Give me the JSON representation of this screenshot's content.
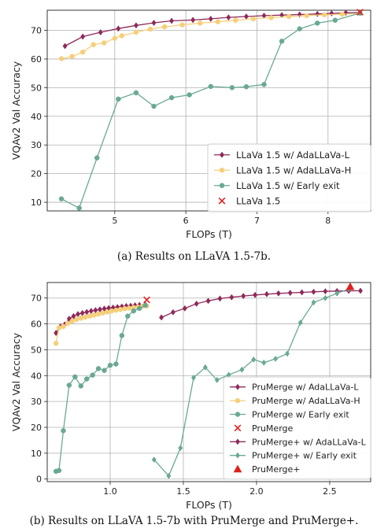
{
  "captions": {
    "a": "(a) Results on LLaVA 1.5-7b.",
    "b": "(b) Results on LLaVA 1.5-7b with PruMerge and PruMerge+."
  },
  "colors": {
    "adallava_l": "#8e2a5a",
    "adallava_h": "#f5cf7a",
    "early_exit": "#6aa994",
    "baseline": "#e0201c",
    "grid": "#b0b0b0"
  },
  "chart_data": [
    {
      "type": "line",
      "xlabel": "FLOPs (T)",
      "ylabel": "VQAv2 Val Accuracy",
      "xlim": [
        4.05,
        8.6
      ],
      "ylim": [
        7,
        77
      ],
      "xticks": [
        5,
        6,
        7,
        8
      ],
      "yticks": [
        10,
        20,
        30,
        40,
        50,
        60,
        70
      ],
      "grid": true,
      "legend_position": "lower-right",
      "series": [
        {
          "name": "LLaVa 1.5 w/ AdaLLaVa-L",
          "marker": "diamond",
          "color": "#8e2a5a",
          "points": [
            [
              4.3,
              64.5
            ],
            [
              4.55,
              67.8
            ],
            [
              4.8,
              69.3
            ],
            [
              5.05,
              70.6
            ],
            [
              5.3,
              71.7
            ],
            [
              5.55,
              72.6
            ],
            [
              5.8,
              73.3
            ],
            [
              6.1,
              73.6
            ],
            [
              6.35,
              74.0
            ],
            [
              6.6,
              74.5
            ],
            [
              6.85,
              74.8
            ],
            [
              7.1,
              75.1
            ],
            [
              7.35,
              75.3
            ],
            [
              7.6,
              75.5
            ],
            [
              7.85,
              75.7
            ],
            [
              8.05,
              75.9
            ],
            [
              8.25,
              76.1
            ],
            [
              8.45,
              76.2
            ]
          ]
        },
        {
          "name": "LLaVa 1.5 w/ AdaLLaVa-H",
          "marker": "circle",
          "color": "#f5cf7a",
          "points": [
            [
              4.25,
              60.1
            ],
            [
              4.4,
              60.9
            ],
            [
              4.55,
              62.4
            ],
            [
              4.7,
              65.0
            ],
            [
              4.85,
              65.6
            ],
            [
              5.0,
              67.2
            ],
            [
              5.1,
              68.1
            ],
            [
              5.3,
              69.3
            ],
            [
              5.5,
              70.4
            ],
            [
              5.7,
              71.2
            ],
            [
              5.95,
              71.9
            ],
            [
              6.2,
              72.5
            ],
            [
              6.45,
              73.0
            ],
            [
              6.7,
              73.5
            ],
            [
              6.95,
              74.0
            ],
            [
              7.2,
              74.4
            ],
            [
              7.45,
              74.8
            ],
            [
              7.7,
              75.1
            ],
            [
              7.95,
              75.4
            ],
            [
              8.2,
              75.6
            ],
            [
              8.45,
              75.9
            ]
          ]
        },
        {
          "name": "LLaVa 1.5 w/ Early exit",
          "marker": "circle",
          "color": "#6aa994",
          "points": [
            [
              4.25,
              11.2
            ],
            [
              4.5,
              8.0
            ],
            [
              4.75,
              25.5
            ],
            [
              5.05,
              46.0
            ],
            [
              5.3,
              48.2
            ],
            [
              5.55,
              43.5
            ],
            [
              5.8,
              46.5
            ],
            [
              6.05,
              47.5
            ],
            [
              6.35,
              50.4
            ],
            [
              6.65,
              50.0
            ],
            [
              6.85,
              50.3
            ],
            [
              7.1,
              51.1
            ],
            [
              7.35,
              66.2
            ],
            [
              7.6,
              70.5
            ],
            [
              7.85,
              72.5
            ],
            [
              8.1,
              73.5
            ],
            [
              8.45,
              76.0
            ]
          ]
        },
        {
          "name": "LLaVa 1.5",
          "marker": "x",
          "color": "#e0201c",
          "points": [
            [
              8.45,
              76.3
            ]
          ]
        }
      ]
    },
    {
      "type": "line",
      "xlabel": "FLOPs (T)",
      "ylabel": "VQAv2 Val Accuracy",
      "xlim": [
        0.57,
        2.78
      ],
      "ylim": [
        -1,
        76
      ],
      "xticks": [
        1.0,
        1.5,
        2.0,
        2.5
      ],
      "xtick_labels": [
        "1.0",
        "1.5",
        "2.0",
        "2.5"
      ],
      "yticks": [
        0,
        10,
        20,
        30,
        40,
        50,
        60,
        70
      ],
      "grid": true,
      "legend_position": "lower-right",
      "series": [
        {
          "name": "PruMerge w/ AdaLLaVa-L",
          "marker": "diamond",
          "color": "#8e2a5a",
          "points": [
            [
              0.63,
              56.5
            ],
            [
              0.66,
              59.0
            ],
            [
              0.69,
              59.8
            ],
            [
              0.72,
              62.0
            ],
            [
              0.75,
              63.0
            ],
            [
              0.78,
              63.8
            ],
            [
              0.81,
              64.2
            ],
            [
              0.84,
              64.6
            ],
            [
              0.87,
              65.0
            ],
            [
              0.9,
              65.3
            ],
            [
              0.93,
              65.6
            ],
            [
              0.96,
              65.9
            ],
            [
              0.99,
              66.1
            ],
            [
              1.02,
              66.3
            ],
            [
              1.05,
              66.5
            ],
            [
              1.08,
              66.7
            ],
            [
              1.11,
              66.9
            ],
            [
              1.14,
              67.0
            ],
            [
              1.17,
              67.2
            ],
            [
              1.2,
              67.3
            ],
            [
              1.24,
              67.5
            ]
          ]
        },
        {
          "name": "PruMerge w/ AdaLLaVa-H",
          "marker": "circle",
          "color": "#f5cf7a",
          "points": [
            [
              0.63,
              52.5
            ],
            [
              0.65,
              58.5
            ],
            [
              0.68,
              59.0
            ],
            [
              0.71,
              60.2
            ],
            [
              0.74,
              61.0
            ],
            [
              0.77,
              61.7
            ],
            [
              0.8,
              62.2
            ],
            [
              0.83,
              62.6
            ],
            [
              0.86,
              63.0
            ],
            [
              0.89,
              63.4
            ],
            [
              0.92,
              63.8
            ],
            [
              0.95,
              64.2
            ],
            [
              0.98,
              64.6
            ],
            [
              1.01,
              65.0
            ],
            [
              1.04,
              65.3
            ],
            [
              1.07,
              65.6
            ],
            [
              1.1,
              65.9
            ],
            [
              1.13,
              66.1
            ],
            [
              1.16,
              66.3
            ],
            [
              1.19,
              66.5
            ],
            [
              1.22,
              66.8
            ],
            [
              1.25,
              66.9
            ]
          ]
        },
        {
          "name": "PruMerge w/ Early exit",
          "marker": "circle",
          "color": "#6aa994",
          "points": [
            [
              0.63,
              3.0
            ],
            [
              0.65,
              3.3
            ],
            [
              0.68,
              18.7
            ],
            [
              0.72,
              36.3
            ],
            [
              0.76,
              39.5
            ],
            [
              0.8,
              36.0
            ],
            [
              0.84,
              38.7
            ],
            [
              0.88,
              40.2
            ],
            [
              0.92,
              42.7
            ],
            [
              0.96,
              42.0
            ],
            [
              1.0,
              44.0
            ],
            [
              1.04,
              44.5
            ],
            [
              1.08,
              55.5
            ],
            [
              1.12,
              63.0
            ],
            [
              1.16,
              65.0
            ],
            [
              1.2,
              66.0
            ],
            [
              1.24,
              67.2
            ]
          ]
        },
        {
          "name": "PruMerge",
          "marker": "x",
          "color": "#e0201c",
          "points": [
            [
              1.25,
              69.3
            ]
          ]
        },
        {
          "name": "PruMerge+ w/ AdaLLaVa-L",
          "marker": "diamond",
          "color": "#8e2a5a",
          "points": [
            [
              1.35,
              62.5
            ],
            [
              1.43,
              64.5
            ],
            [
              1.51,
              66.0
            ],
            [
              1.59,
              67.8
            ],
            [
              1.67,
              68.9
            ],
            [
              1.75,
              69.8
            ],
            [
              1.83,
              70.3
            ],
            [
              1.91,
              70.8
            ],
            [
              1.99,
              71.2
            ],
            [
              2.07,
              71.5
            ],
            [
              2.15,
              71.8
            ],
            [
              2.23,
              72.0
            ],
            [
              2.31,
              72.2
            ],
            [
              2.39,
              72.4
            ],
            [
              2.47,
              72.6
            ],
            [
              2.55,
              72.7
            ],
            [
              2.63,
              72.8
            ],
            [
              2.71,
              72.8
            ]
          ]
        },
        {
          "name": "PruMerge+ w/ Early exit",
          "marker": "diamond",
          "color": "#6aa994",
          "points": [
            [
              1.3,
              7.5
            ],
            [
              1.4,
              1.2
            ],
            [
              1.48,
              12.0
            ],
            [
              1.57,
              39.2
            ],
            [
              1.65,
              43.2
            ],
            [
              1.73,
              38.3
            ],
            [
              1.81,
              40.3
            ],
            [
              1.9,
              42.3
            ],
            [
              1.98,
              46.2
            ],
            [
              2.05,
              45.0
            ],
            [
              2.13,
              46.5
            ],
            [
              2.21,
              48.5
            ],
            [
              2.3,
              60.5
            ],
            [
              2.39,
              68.3
            ],
            [
              2.47,
              70.0
            ],
            [
              2.55,
              71.8
            ],
            [
              2.63,
              73.5
            ]
          ]
        },
        {
          "name": "PruMerge+",
          "marker": "triangle",
          "color": "#e0201c",
          "points": [
            [
              2.64,
              74.4
            ]
          ]
        }
      ]
    }
  ]
}
